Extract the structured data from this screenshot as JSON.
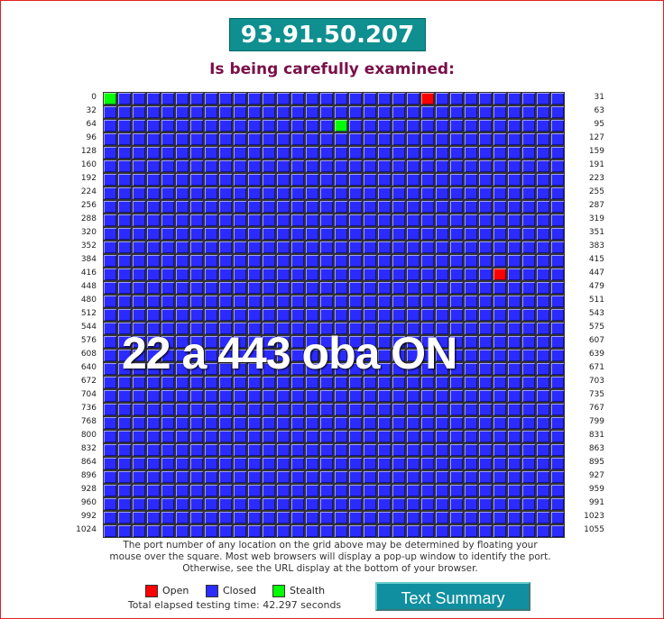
{
  "header": {
    "ip": "93.91.50.207",
    "subtitle": "Is being carefully examined:"
  },
  "grid": {
    "left_labels": [
      0,
      32,
      64,
      96,
      128,
      160,
      192,
      224,
      256,
      288,
      320,
      352,
      384,
      416,
      448,
      480,
      512,
      544,
      576,
      608,
      640,
      672,
      704,
      736,
      768,
      800,
      832,
      864,
      896,
      928,
      960,
      992,
      1024
    ],
    "right_labels": [
      31,
      63,
      95,
      127,
      159,
      191,
      223,
      255,
      287,
      319,
      351,
      383,
      415,
      447,
      479,
      511,
      543,
      575,
      607,
      639,
      671,
      703,
      735,
      767,
      799,
      831,
      863,
      895,
      927,
      959,
      991,
      1023,
      1055
    ],
    "open_ports": [
      22,
      443
    ],
    "stealth_ports": [
      0,
      80
    ]
  },
  "overlay_text": "22 a 443 oba ON",
  "note": "The port number of any location on the grid above may be determined by floating your mouse over the square. Most web browsers will display a pop-up window to identify the port. Otherwise, see the URL display at the bottom of your browser.",
  "legend": [
    {
      "label": "Open",
      "color": "#ff0000"
    },
    {
      "label": "Closed",
      "color": "#2b2bff"
    },
    {
      "label": "Stealth",
      "color": "#00ff00"
    }
  ],
  "elapsed": "Total elapsed testing time: 42.297 seconds",
  "button": "Text Summary"
}
